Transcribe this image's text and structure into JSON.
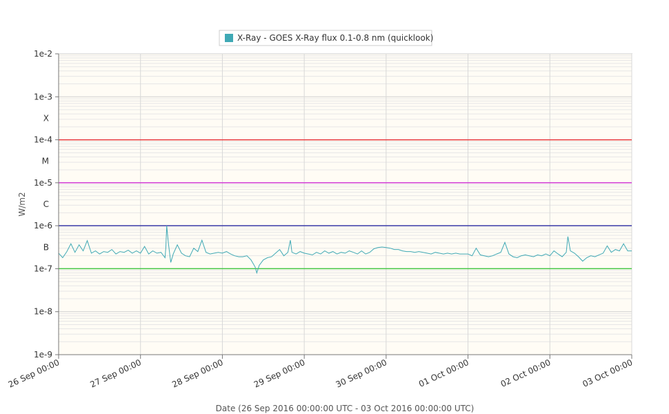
{
  "chart_data": {
    "type": "line",
    "legend": {
      "label": "X-Ray - GOES X-Ray flux 0.1-0.8 nm (quicklook)",
      "color": "#3fa9b5",
      "placement": "top-center"
    },
    "ylabel": "W/m2",
    "xlabel": "Date (26 Sep 2016 00:00:00 UTC - 03 Oct 2016 00:00:00 UTC)",
    "yscale": "log",
    "ylim": [
      1e-09,
      0.01
    ],
    "xlim_days": [
      0,
      7
    ],
    "y_ticks": [
      {
        "value": 1e-09,
        "label": "1e-9"
      },
      {
        "value": 1e-08,
        "label": "1e-8"
      },
      {
        "value": 1e-07,
        "label": "1e-7"
      },
      {
        "value": 1e-06,
        "label": "1e-6"
      },
      {
        "value": 1e-05,
        "label": "1e-5"
      },
      {
        "value": 0.0001,
        "label": "1e-4"
      },
      {
        "value": 0.001,
        "label": "1e-3"
      },
      {
        "value": 0.01,
        "label": "1e-2"
      }
    ],
    "class_labels": [
      {
        "label": "B",
        "value": 3.16e-07
      },
      {
        "label": "C",
        "value": 3.16e-06
      },
      {
        "label": "M",
        "value": 3.16e-05
      },
      {
        "label": "X",
        "value": 0.000316
      }
    ],
    "x_ticks": [
      {
        "day": 0,
        "label": "26 Sep 00:00"
      },
      {
        "day": 1,
        "label": "27 Sep 00:00"
      },
      {
        "day": 2,
        "label": "28 Sep 00:00"
      },
      {
        "day": 3,
        "label": "29 Sep 00:00"
      },
      {
        "day": 4,
        "label": "30 Sep 00:00"
      },
      {
        "day": 5,
        "label": "01 Oct 00:00"
      },
      {
        "day": 6,
        "label": "02 Oct 00:00"
      },
      {
        "day": 7,
        "label": "03 Oct 00:00"
      }
    ],
    "threshold_lines": [
      {
        "class": "X",
        "value": 0.0001,
        "color": "#e8383d"
      },
      {
        "class": "M",
        "value": 1e-05,
        "color": "#d13ad6"
      },
      {
        "class": "C",
        "value": 1e-06,
        "color": "#3838a8"
      },
      {
        "class": "B",
        "value": 1e-07,
        "color": "#44c744"
      }
    ],
    "series": [
      {
        "name": "X-Ray - GOES X-Ray flux 0.1-0.8 nm (quicklook)",
        "color": "#3fa9b5",
        "points": [
          [
            0.0,
            2.3e-07
          ],
          [
            0.05,
            1.8e-07
          ],
          [
            0.1,
            2.5e-07
          ],
          [
            0.15,
            3.8e-07
          ],
          [
            0.2,
            2.4e-07
          ],
          [
            0.25,
            3.6e-07
          ],
          [
            0.3,
            2.6e-07
          ],
          [
            0.35,
            4.5e-07
          ],
          [
            0.4,
            2.3e-07
          ],
          [
            0.45,
            2.6e-07
          ],
          [
            0.5,
            2.2e-07
          ],
          [
            0.55,
            2.5e-07
          ],
          [
            0.6,
            2.4e-07
          ],
          [
            0.65,
            2.8e-07
          ],
          [
            0.7,
            2.2e-07
          ],
          [
            0.75,
            2.5e-07
          ],
          [
            0.8,
            2.4e-07
          ],
          [
            0.85,
            2.7e-07
          ],
          [
            0.9,
            2.3e-07
          ],
          [
            0.95,
            2.6e-07
          ],
          [
            1.0,
            2.3e-07
          ],
          [
            1.05,
            3.3e-07
          ],
          [
            1.1,
            2.2e-07
          ],
          [
            1.15,
            2.6e-07
          ],
          [
            1.2,
            2.3e-07
          ],
          [
            1.25,
            2.4e-07
          ],
          [
            1.3,
            1.8e-07
          ],
          [
            1.31,
            3.2e-07
          ],
          [
            1.32,
            1e-06
          ],
          [
            1.34,
            4e-07
          ],
          [
            1.37,
            1.4e-07
          ],
          [
            1.4,
            2.2e-07
          ],
          [
            1.45,
            3.6e-07
          ],
          [
            1.5,
            2.3e-07
          ],
          [
            1.55,
            2e-07
          ],
          [
            1.6,
            1.9e-07
          ],
          [
            1.65,
            3e-07
          ],
          [
            1.7,
            2.5e-07
          ],
          [
            1.75,
            4.6e-07
          ],
          [
            1.8,
            2.4e-07
          ],
          [
            1.85,
            2.2e-07
          ],
          [
            1.9,
            2.3e-07
          ],
          [
            1.95,
            2.4e-07
          ],
          [
            2.0,
            2.3e-07
          ],
          [
            2.05,
            2.5e-07
          ],
          [
            2.1,
            2.2e-07
          ],
          [
            2.15,
            2e-07
          ],
          [
            2.2,
            1.9e-07
          ],
          [
            2.25,
            1.9e-07
          ],
          [
            2.3,
            2e-07
          ],
          [
            2.35,
            1.6e-07
          ],
          [
            2.4,
            1.1e-07
          ],
          [
            2.42,
            8e-08
          ],
          [
            2.45,
            1.2e-07
          ],
          [
            2.5,
            1.6e-07
          ],
          [
            2.55,
            1.8e-07
          ],
          [
            2.6,
            1.9e-07
          ],
          [
            2.65,
            2.3e-07
          ],
          [
            2.7,
            2.8e-07
          ],
          [
            2.75,
            2e-07
          ],
          [
            2.8,
            2.4e-07
          ],
          [
            2.83,
            4.6e-07
          ],
          [
            2.85,
            2.4e-07
          ],
          [
            2.9,
            2.2e-07
          ],
          [
            2.95,
            2.5e-07
          ],
          [
            3.0,
            2.3e-07
          ],
          [
            3.05,
            2.2e-07
          ],
          [
            3.1,
            2.1e-07
          ],
          [
            3.15,
            2.4e-07
          ],
          [
            3.2,
            2.2e-07
          ],
          [
            3.25,
            2.6e-07
          ],
          [
            3.3,
            2.3e-07
          ],
          [
            3.35,
            2.5e-07
          ],
          [
            3.4,
            2.2e-07
          ],
          [
            3.45,
            2.4e-07
          ],
          [
            3.5,
            2.3e-07
          ],
          [
            3.55,
            2.6e-07
          ],
          [
            3.6,
            2.4e-07
          ],
          [
            3.65,
            2.2e-07
          ],
          [
            3.7,
            2.6e-07
          ],
          [
            3.75,
            2.2e-07
          ],
          [
            3.8,
            2.4e-07
          ],
          [
            3.85,
            2.9e-07
          ],
          [
            3.9,
            3.1e-07
          ],
          [
            3.95,
            3.2e-07
          ],
          [
            4.0,
            3.1e-07
          ],
          [
            4.05,
            3e-07
          ],
          [
            4.1,
            2.8e-07
          ],
          [
            4.15,
            2.8e-07
          ],
          [
            4.2,
            2.6e-07
          ],
          [
            4.25,
            2.5e-07
          ],
          [
            4.3,
            2.5e-07
          ],
          [
            4.35,
            2.4e-07
          ],
          [
            4.4,
            2.5e-07
          ],
          [
            4.45,
            2.4e-07
          ],
          [
            4.5,
            2.3e-07
          ],
          [
            4.55,
            2.2e-07
          ],
          [
            4.6,
            2.4e-07
          ],
          [
            4.65,
            2.3e-07
          ],
          [
            4.7,
            2.2e-07
          ],
          [
            4.75,
            2.3e-07
          ],
          [
            4.8,
            2.2e-07
          ],
          [
            4.85,
            2.3e-07
          ],
          [
            4.9,
            2.2e-07
          ],
          [
            4.95,
            2.2e-07
          ],
          [
            5.0,
            2.2e-07
          ],
          [
            5.05,
            2e-07
          ],
          [
            5.1,
            3e-07
          ],
          [
            5.15,
            2.1e-07
          ],
          [
            5.2,
            2e-07
          ],
          [
            5.25,
            1.9e-07
          ],
          [
            5.3,
            2e-07
          ],
          [
            5.35,
            2.2e-07
          ],
          [
            5.4,
            2.4e-07
          ],
          [
            5.45,
            4.1e-07
          ],
          [
            5.5,
            2.2e-07
          ],
          [
            5.55,
            1.9e-07
          ],
          [
            5.6,
            1.8e-07
          ],
          [
            5.65,
            2e-07
          ],
          [
            5.7,
            2.1e-07
          ],
          [
            5.75,
            2e-07
          ],
          [
            5.8,
            1.9e-07
          ],
          [
            5.85,
            2.1e-07
          ],
          [
            5.9,
            2e-07
          ],
          [
            5.95,
            2.2e-07
          ],
          [
            6.0,
            2e-07
          ],
          [
            6.05,
            2.6e-07
          ],
          [
            6.1,
            2.2e-07
          ],
          [
            6.15,
            1.9e-07
          ],
          [
            6.2,
            2.4e-07
          ],
          [
            6.22,
            5.6e-07
          ],
          [
            6.25,
            2.6e-07
          ],
          [
            6.3,
            2.3e-07
          ],
          [
            6.35,
            1.9e-07
          ],
          [
            6.4,
            1.5e-07
          ],
          [
            6.45,
            1.8e-07
          ],
          [
            6.5,
            2e-07
          ],
          [
            6.55,
            1.9e-07
          ],
          [
            6.6,
            2.1e-07
          ],
          [
            6.65,
            2.3e-07
          ],
          [
            6.7,
            3.4e-07
          ],
          [
            6.75,
            2.4e-07
          ],
          [
            6.8,
            2.8e-07
          ],
          [
            6.85,
            2.6e-07
          ],
          [
            6.9,
            3.8e-07
          ],
          [
            6.95,
            2.6e-07
          ],
          [
            7.0,
            2.6e-07
          ]
        ]
      }
    ]
  }
}
